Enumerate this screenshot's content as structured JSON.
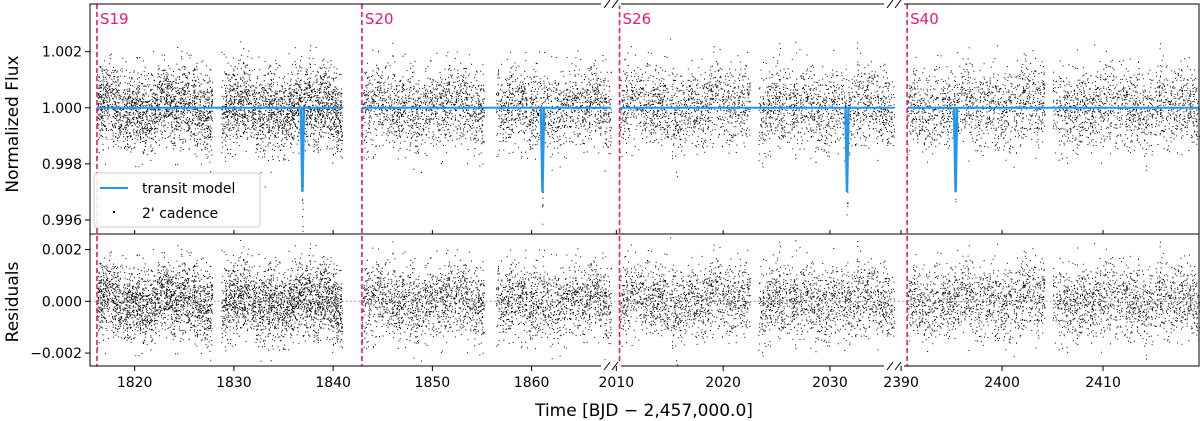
{
  "chart_data": {
    "type": "scatter",
    "xlabel": "Time [BJD − 2,457,000.0]",
    "segments": [
      {
        "name": "S19",
        "xlim": [
          1815.5,
          1868.0
        ],
        "sector_start": 1816.2,
        "gaps": [
          [
            1827.8,
            1828.7
          ],
          [
            1840.9,
            1842.6
          ],
          [
            1842.8,
            1843.0
          ]
        ],
        "data_range": [
          1816.2,
          1841.0
        ]
      },
      {
        "name": "S20",
        "sector_start": 1842.9,
        "gaps": [
          [
            1855.2,
            1856.4
          ]
        ],
        "data_range": [
          1842.9,
          1868.0
        ]
      },
      {
        "name": "S26",
        "xlim": [
          2009.5,
          2036.0
        ],
        "sector_start": 2010.3,
        "gaps": [
          [
            2022.5,
            2023.3
          ]
        ],
        "data_range": [
          2010.3,
          2036.0
        ]
      },
      {
        "name": "S40",
        "xlim": [
          2389.3,
          2419.5
        ],
        "sector_start": 2390.6,
        "gaps": [
          [
            2404.2,
            2405.0
          ]
        ],
        "data_range": [
          2390.6,
          2419.5
        ]
      }
    ],
    "top_panel": {
      "ylabel": "Normalized Flux",
      "ylim": [
        0.9955,
        1.0037
      ],
      "yticks": [
        0.996,
        0.998,
        1.0,
        1.002
      ],
      "ytick_labels": [
        "0.996",
        "0.998",
        "1.000",
        "1.002"
      ],
      "baseline": 1.0,
      "scatter_sigma": 0.0007,
      "transits": [
        {
          "x": 1836.9,
          "depth": 0.003
        },
        {
          "x": 1861.1,
          "depth": 0.003
        },
        {
          "x": 2031.6,
          "depth": 0.003
        },
        {
          "x": 2395.4,
          "depth": 0.003
        }
      ],
      "model_color": "#2196f3",
      "point_color": "#000000",
      "series": [
        {
          "name": "transit model",
          "kind": "line"
        },
        {
          "name": "2' cadence",
          "kind": "points"
        }
      ],
      "legend_position": "lower-left"
    },
    "bottom_panel": {
      "ylabel": "Residuals",
      "ylim": [
        -0.0025,
        0.0026
      ],
      "yticks": [
        -0.002,
        0.0,
        0.002
      ],
      "ytick_labels": [
        "−0.002",
        "0.000",
        "0.002"
      ],
      "zero_line": "dotted gray"
    },
    "xticks": [
      {
        "value": 1820,
        "label": "1820"
      },
      {
        "value": 1830,
        "label": "1830"
      },
      {
        "value": 1840,
        "label": "1840"
      },
      {
        "value": 1850,
        "label": "1850"
      },
      {
        "value": 1860,
        "label": "1860"
      },
      {
        "value": 2010,
        "label": "2010"
      },
      {
        "value": 2020,
        "label": "2020"
      },
      {
        "value": 2030,
        "label": "2030"
      },
      {
        "value": 2390,
        "label": "2390"
      },
      {
        "value": 2400,
        "label": "2400"
      },
      {
        "value": 2410,
        "label": "2410"
      }
    ],
    "sector_line_color": "#e6197d",
    "grid": false
  }
}
